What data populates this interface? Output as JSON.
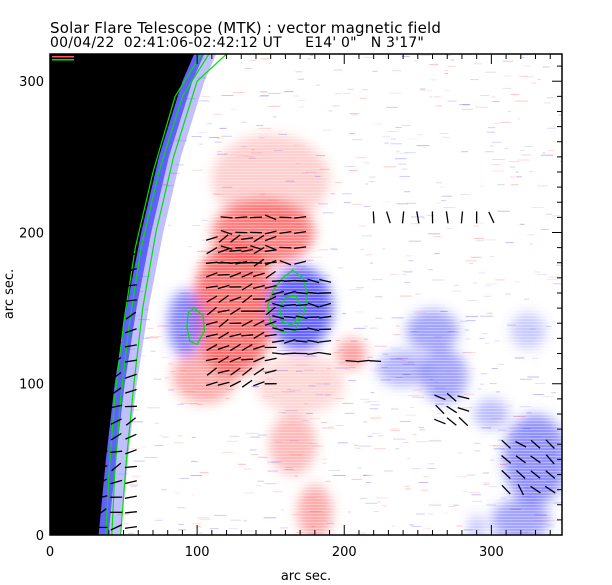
{
  "header": {
    "title": "Solar Flare Telescope (MTK) : vector magnetic field",
    "subtitle": "00/04/22  02:41:06-02:42:12 UT     E14' 0\"   N 3'17\""
  },
  "chart_data": {
    "type": "heatmap",
    "title": "Solar Flare Telescope (MTK) : vector magnetic field",
    "subtitle": "00/04/22  02:41:06-02:42:12 UT     E14' 0\"   N 3'17\"",
    "xlabel": "arc sec.",
    "ylabel": "arc sec.",
    "xlim": [
      0,
      348
    ],
    "ylim": [
      0,
      318
    ],
    "xticks": [
      0,
      100,
      200,
      300
    ],
    "yticks": [
      0,
      100,
      200,
      300
    ],
    "x_minor_step": 10,
    "y_minor_step": 10,
    "colors": {
      "positive_polarity": "#ff5a5a",
      "negative_polarity": "#4a4aff",
      "off_limb": "#000000",
      "contour": "#00e000",
      "vectors": "#000000",
      "background": "#ffffff"
    },
    "legend_swatches": [
      "#ff5a5a",
      "#00e000"
    ],
    "limb": {
      "description": "solar limb on left; off-disk region black",
      "points": [
        [
          33,
          0
        ],
        [
          38,
          50
        ],
        [
          44,
          100
        ],
        [
          52,
          150
        ],
        [
          62,
          200
        ],
        [
          74,
          250
        ],
        [
          90,
          300
        ],
        [
          98,
          318
        ]
      ]
    },
    "blobs": [
      {
        "polarity": "positive",
        "x": 145,
        "y": 200,
        "rx": 35,
        "ry": 22,
        "strength": 0.9
      },
      {
        "polarity": "positive",
        "x": 125,
        "y": 150,
        "rx": 28,
        "ry": 45,
        "strength": 1.0
      },
      {
        "polarity": "positive",
        "x": 105,
        "y": 105,
        "rx": 22,
        "ry": 18,
        "strength": 0.6
      },
      {
        "polarity": "positive",
        "x": 205,
        "y": 120,
        "rx": 10,
        "ry": 10,
        "strength": 0.7
      },
      {
        "polarity": "positive",
        "x": 165,
        "y": 60,
        "rx": 16,
        "ry": 20,
        "strength": 0.5
      },
      {
        "polarity": "positive",
        "x": 180,
        "y": 15,
        "rx": 12,
        "ry": 18,
        "strength": 0.6
      },
      {
        "polarity": "positive",
        "x": 170,
        "y": 100,
        "rx": 30,
        "ry": 20,
        "strength": 0.3
      },
      {
        "polarity": "positive",
        "x": 150,
        "y": 235,
        "rx": 40,
        "ry": 30,
        "strength": 0.35
      },
      {
        "polarity": "negative",
        "x": 170,
        "y": 150,
        "rx": 22,
        "ry": 28,
        "strength": 1.0
      },
      {
        "polarity": "negative",
        "x": 92,
        "y": 140,
        "rx": 12,
        "ry": 22,
        "strength": 0.8
      },
      {
        "polarity": "negative",
        "x": 260,
        "y": 135,
        "rx": 18,
        "ry": 14,
        "strength": 0.6
      },
      {
        "polarity": "negative",
        "x": 268,
        "y": 105,
        "rx": 16,
        "ry": 18,
        "strength": 0.6
      },
      {
        "polarity": "negative",
        "x": 240,
        "y": 110,
        "rx": 18,
        "ry": 12,
        "strength": 0.5
      },
      {
        "polarity": "negative",
        "x": 330,
        "y": 50,
        "rx": 22,
        "ry": 30,
        "strength": 0.7
      },
      {
        "polarity": "negative",
        "x": 320,
        "y": 10,
        "rx": 20,
        "ry": 14,
        "strength": 0.6
      },
      {
        "polarity": "negative",
        "x": 300,
        "y": 80,
        "rx": 12,
        "ry": 10,
        "strength": 0.45
      },
      {
        "polarity": "negative",
        "x": 325,
        "y": 135,
        "rx": 12,
        "ry": 12,
        "strength": 0.35
      },
      {
        "polarity": "negative",
        "x": 290,
        "y": 5,
        "rx": 6,
        "ry": 8,
        "strength": 0.4
      }
    ],
    "contours": [
      {
        "name": "limb-contour-1",
        "points": [
          [
            38,
            0
          ],
          [
            40,
            40
          ],
          [
            44,
            90
          ],
          [
            50,
            140
          ],
          [
            58,
            190
          ],
          [
            70,
            240
          ],
          [
            85,
            290
          ],
          [
            103,
            318
          ]
        ]
      },
      {
        "name": "limb-contour-2",
        "points": [
          [
            42,
            0
          ],
          [
            44,
            40
          ],
          [
            48,
            90
          ],
          [
            54,
            140
          ],
          [
            62,
            190
          ],
          [
            74,
            240
          ],
          [
            90,
            290
          ],
          [
            108,
            318
          ]
        ]
      },
      {
        "name": "limb-contour-3",
        "points": [
          [
            48,
            0
          ],
          [
            52,
            50
          ],
          [
            57,
            100
          ],
          [
            63,
            150
          ],
          [
            72,
            200
          ],
          [
            84,
            250
          ],
          [
            100,
            300
          ],
          [
            120,
            318
          ]
        ]
      },
      {
        "name": "spot-contour-left",
        "closed": true,
        "points": [
          [
            98,
            150
          ],
          [
            104,
            145
          ],
          [
            105,
            135
          ],
          [
            100,
            126
          ],
          [
            95,
            128
          ],
          [
            93,
            138
          ],
          [
            94,
            147
          ]
        ]
      },
      {
        "name": "spot-contour-right-outer",
        "closed": true,
        "points": [
          [
            165,
            175
          ],
          [
            172,
            170
          ],
          [
            175,
            158
          ],
          [
            172,
            145
          ],
          [
            166,
            135
          ],
          [
            158,
            134
          ],
          [
            150,
            140
          ],
          [
            148,
            152
          ],
          [
            152,
            162
          ],
          [
            158,
            170
          ]
        ]
      },
      {
        "name": "spot-contour-right-inner",
        "closed": true,
        "points": [
          [
            167,
            158
          ],
          [
            170,
            152
          ],
          [
            169,
            143
          ],
          [
            164,
            139
          ],
          [
            158,
            141
          ],
          [
            156,
            150
          ],
          [
            160,
            157
          ]
        ]
      }
    ],
    "vector_regions": [
      {
        "x": [
          35,
          60
        ],
        "y": [
          5,
          315
        ],
        "step": 10,
        "angle": 200,
        "length": 6
      },
      {
        "x": [
          110,
          150
        ],
        "y": [
          100,
          200
        ],
        "step": 8,
        "angle": 200,
        "length": 6
      },
      {
        "x": [
          155,
          190
        ],
        "y": [
          120,
          170
        ],
        "step": 8,
        "angle": 180,
        "length": 6
      },
      {
        "x": [
          120,
          175
        ],
        "y": [
          180,
          210
        ],
        "step": 10,
        "angle": 175,
        "length": 6
      },
      {
        "x": [
          220,
          300
        ],
        "y": [
          210,
          215
        ],
        "step": 10,
        "angle": 100,
        "length": 6
      },
      {
        "x": [
          205,
          225
        ],
        "y": [
          115,
          120
        ],
        "step": 8,
        "angle": 175,
        "length": 6
      },
      {
        "x": [
          310,
          340
        ],
        "y": [
          30,
          65
        ],
        "step": 10,
        "angle": 135,
        "length": 6
      },
      {
        "x": [
          265,
          285
        ],
        "y": [
          75,
          95
        ],
        "step": 8,
        "angle": 150,
        "length": 6
      }
    ]
  }
}
